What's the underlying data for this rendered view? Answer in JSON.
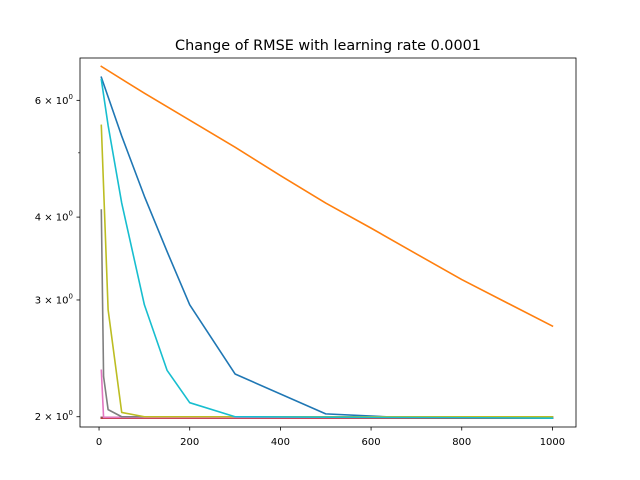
{
  "chart_data": {
    "type": "line",
    "title": "Change of RMSE with learning rate 0.0001",
    "xlabel": "",
    "ylabel": "",
    "xlim": [
      -42,
      1052
    ],
    "ylim": [
      1.93,
      6.95
    ],
    "yscale": "log",
    "grid": false,
    "x_ticks": [
      {
        "value": 0,
        "label": "0"
      },
      {
        "value": 200,
        "label": "200"
      },
      {
        "value": 400,
        "label": "400"
      },
      {
        "value": 600,
        "label": "600"
      },
      {
        "value": 800,
        "label": "800"
      },
      {
        "value": 1000,
        "label": "1000"
      }
    ],
    "y_major_ticks": [
      {
        "value": 2,
        "base": "2",
        "exp": "0"
      },
      {
        "value": 3,
        "base": "3",
        "exp": "0"
      },
      {
        "value": 4,
        "base": "4",
        "exp": "0"
      },
      {
        "value": 6,
        "base": "6",
        "exp": "0"
      }
    ],
    "y_minor_ticks": [
      5
    ],
    "series": [
      {
        "color": "#1f77b4",
        "x": [
          5,
          50,
          100,
          150,
          200,
          300,
          500,
          700,
          1000
        ],
        "y": [
          6.5,
          5.3,
          4.3,
          3.55,
          2.95,
          2.32,
          2.02,
          1.99,
          1.99
        ]
      },
      {
        "color": "#ff7f0e",
        "x": [
          5,
          100,
          200,
          300,
          400,
          500,
          600,
          700,
          800,
          900,
          1000
        ],
        "y": [
          6.75,
          6.15,
          5.6,
          5.1,
          4.62,
          4.2,
          3.85,
          3.52,
          3.22,
          2.97,
          2.74
        ]
      },
      {
        "color": "#2ca02c",
        "x": [
          5,
          1000
        ],
        "y": [
          1.99,
          1.99
        ]
      },
      {
        "color": "#d62728",
        "x": [
          5,
          1000
        ],
        "y": [
          1.99,
          1.99
        ]
      },
      {
        "color": "#9467bd",
        "x": [
          5,
          1000
        ],
        "y": [
          1.995,
          1.995
        ]
      },
      {
        "color": "#8c564b",
        "x": [
          5,
          1000
        ],
        "y": [
          1.995,
          1.995
        ]
      },
      {
        "color": "#e377c2",
        "x": [
          5,
          10,
          20,
          1000
        ],
        "y": [
          2.35,
          1.995,
          1.995,
          1.995
        ]
      },
      {
        "color": "#7f7f7f",
        "x": [
          5,
          10,
          20,
          50,
          100,
          1000
        ],
        "y": [
          4.1,
          2.3,
          2.05,
          2.0,
          2.0,
          2.0
        ]
      },
      {
        "color": "#bcbd22",
        "x": [
          5,
          20,
          50,
          100,
          1000
        ],
        "y": [
          5.5,
          2.9,
          2.03,
          2.0,
          2.0
        ]
      },
      {
        "color": "#17becf",
        "x": [
          5,
          20,
          50,
          100,
          150,
          200,
          300,
          1000
        ],
        "y": [
          6.45,
          5.5,
          4.2,
          2.95,
          2.35,
          2.1,
          2.0,
          1.99
        ]
      }
    ]
  }
}
